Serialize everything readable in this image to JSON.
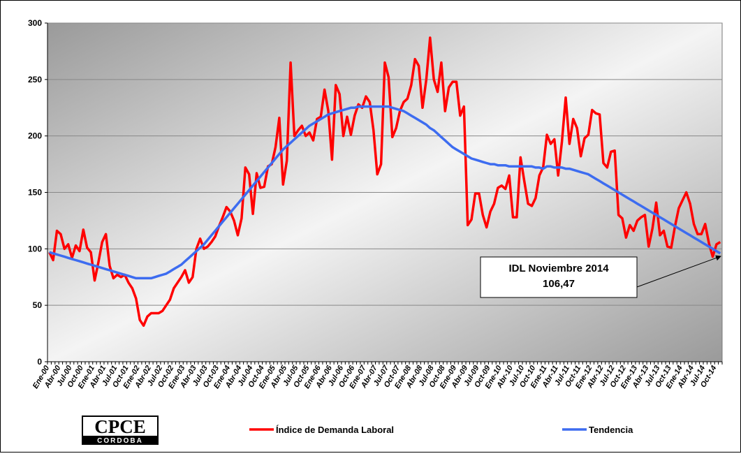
{
  "chart_data": {
    "type": "line",
    "categories": [
      "Ene-00",
      null,
      null,
      "Abr-00",
      null,
      null,
      "Jul-00",
      null,
      null,
      "Oct-00",
      null,
      null,
      "Ene-01",
      null,
      null,
      "Abr-01",
      null,
      null,
      "Jul-01",
      null,
      null,
      "Oct-01",
      null,
      null,
      "Ene-02",
      null,
      null,
      "Abr-02",
      null,
      null,
      "Jul-02",
      null,
      null,
      "Oct-02",
      null,
      null,
      "Ene-03",
      null,
      null,
      "Abr-03",
      null,
      null,
      "Jul-03",
      null,
      null,
      "Oct-03",
      null,
      null,
      "Ene-04",
      null,
      null,
      "Abr-04",
      null,
      null,
      "Jul-04",
      null,
      null,
      "Oct-04",
      null,
      null,
      "Ene-05",
      null,
      null,
      "Abr-05",
      null,
      null,
      "Jul-05",
      null,
      null,
      "Oct-05",
      null,
      null,
      "Ene-06",
      null,
      null,
      "Abr-06",
      null,
      null,
      "Jul-06",
      null,
      null,
      "Oct-06",
      null,
      null,
      "Ene-07",
      null,
      null,
      "Abr-07",
      null,
      null,
      "Jul-07",
      null,
      null,
      "Oct-07",
      null,
      null,
      "Ene-08",
      null,
      null,
      "Abr-08",
      null,
      null,
      "Jul-08",
      null,
      null,
      "Oct-08",
      null,
      null,
      "Ene-09",
      null,
      null,
      "Abr-09",
      null,
      null,
      "Jul-09",
      null,
      null,
      "Oct-09",
      null,
      null,
      "Ene-10",
      null,
      null,
      "Abr-10",
      null,
      null,
      "Jul-10",
      null,
      null,
      "Oct-10",
      null,
      null,
      "Ene-11",
      null,
      null,
      "Abr-11",
      null,
      null,
      "Jul-11",
      null,
      null,
      "Oct-11",
      null,
      null,
      "Ene-12",
      null,
      null,
      "Abr-12",
      null,
      null,
      "Jul-12",
      null,
      null,
      "Oct-12",
      null,
      null,
      "Ene-13",
      null,
      null,
      "Abr-13",
      null,
      null,
      "Jul-13",
      null,
      null,
      "Oct-13",
      null,
      null,
      "Ene-14",
      null,
      null,
      "Abr-14",
      null,
      null,
      "Jul-14",
      null,
      null,
      "Oct-14",
      null
    ],
    "series": [
      {
        "name": "Índice de Demanda Laboral",
        "color": "#ff0000",
        "values": [
          97,
          90,
          116,
          113,
          100,
          104,
          92,
          103,
          98,
          117,
          101,
          97,
          72,
          88,
          106,
          113,
          85,
          74,
          77,
          75,
          77,
          70,
          65,
          56,
          37,
          32,
          40,
          43,
          43,
          43,
          45,
          50,
          55,
          65,
          70,
          75,
          81,
          70,
          75,
          100,
          109,
          100,
          102,
          106,
          111,
          120,
          128,
          137,
          133,
          125,
          112,
          127,
          172,
          166,
          131,
          167,
          154,
          155,
          173,
          175,
          190,
          216,
          157,
          178,
          265,
          200,
          205,
          209,
          200,
          203,
          196,
          215,
          217,
          241,
          222,
          179,
          245,
          237,
          200,
          217,
          201,
          218,
          228,
          225,
          235,
          230,
          205,
          166,
          175,
          265,
          252,
          199,
          207,
          222,
          230,
          233,
          245,
          268,
          262,
          225,
          250,
          287,
          250,
          239,
          265,
          222,
          243,
          248,
          248,
          218,
          226,
          121,
          126,
          149,
          149,
          130,
          119,
          133,
          140,
          154,
          156,
          153,
          165,
          128,
          128,
          181,
          160,
          140,
          138,
          145,
          165,
          172,
          201,
          193,
          197,
          165,
          195,
          234,
          193,
          215,
          207,
          182,
          198,
          201,
          223,
          220,
          219,
          176,
          172,
          186,
          187,
          130,
          127,
          110,
          121,
          116,
          125,
          128,
          130,
          102,
          118,
          141,
          112,
          116,
          102,
          101,
          120,
          136,
          143,
          150,
          140,
          122,
          113,
          113,
          122,
          105,
          93,
          104,
          106
        ]
      },
      {
        "name": "Tendencia",
        "color": "#3d6cf0",
        "values": [
          97,
          96,
          95,
          94,
          93,
          92,
          91,
          90,
          89,
          88,
          87,
          86,
          85,
          84,
          83,
          82,
          81,
          80,
          79,
          78,
          77,
          76,
          75,
          74,
          74,
          74,
          74,
          74,
          75,
          76,
          77,
          78,
          80,
          82,
          84,
          86,
          89,
          92,
          95,
          98,
          101,
          104,
          108,
          112,
          116,
          120,
          124,
          128,
          132,
          136,
          140,
          144,
          148,
          152,
          156,
          160,
          164,
          168,
          172,
          176,
          180,
          184,
          188,
          191,
          194,
          197,
          200,
          203,
          206,
          209,
          211,
          213,
          215,
          217,
          219,
          220,
          221,
          222,
          223,
          224,
          225,
          225,
          226,
          226,
          226,
          226,
          226,
          226,
          226,
          226,
          226,
          225,
          224,
          223,
          222,
          220,
          218,
          216,
          214,
          212,
          210,
          207,
          205,
          202,
          199,
          196,
          193,
          190,
          188,
          186,
          184,
          182,
          180,
          179,
          178,
          177,
          176,
          175,
          175,
          174,
          174,
          174,
          173,
          173,
          173,
          173,
          173,
          173,
          173,
          172,
          172,
          171,
          173,
          173,
          172,
          172,
          172,
          171,
          171,
          170,
          169,
          168,
          167,
          166,
          164,
          162,
          160,
          158,
          156,
          154,
          152,
          150,
          148,
          146,
          144,
          142,
          140,
          138,
          136,
          134,
          132,
          130,
          128,
          126,
          124,
          122,
          120,
          118,
          116,
          114,
          112,
          110,
          108,
          106,
          104,
          102,
          100,
          98,
          96
        ]
      }
    ],
    "ylim": [
      0,
      300
    ],
    "yticks": [
      0,
      50,
      100,
      150,
      200,
      250,
      300
    ],
    "grid": true,
    "legend": "bottom",
    "annotation": {
      "title": "IDL Noviembre 2014",
      "value": "106,47"
    },
    "logo": {
      "name": "CPCE",
      "sub": "CORDOBA"
    }
  }
}
